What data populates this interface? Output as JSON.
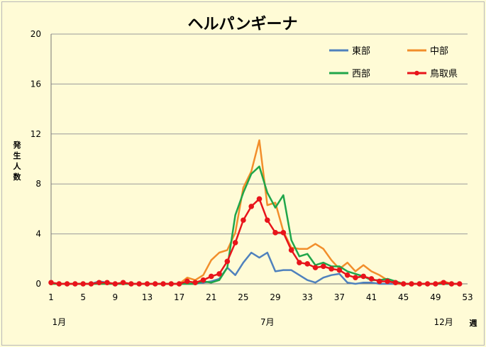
{
  "chart_data": {
    "type": "line",
    "title": "ヘルパンギーナ",
    "ylabel": "発生人数",
    "xlabel_unit": "週",
    "ylim": [
      0,
      20
    ],
    "yticks": [
      0,
      4,
      8,
      12,
      16,
      20
    ],
    "xticks": [
      1,
      5,
      9,
      13,
      17,
      21,
      25,
      29,
      33,
      37,
      41,
      45,
      49,
      53
    ],
    "xlim": [
      1,
      53
    ],
    "month_labels": [
      {
        "label": "1月",
        "week": 2
      },
      {
        "label": "7月",
        "week": 28
      },
      {
        "label": "12月",
        "week": 50
      }
    ],
    "grid": true,
    "legend_position": "top-right",
    "x": [
      1,
      2,
      3,
      4,
      5,
      6,
      7,
      8,
      9,
      10,
      11,
      12,
      13,
      14,
      15,
      16,
      17,
      18,
      19,
      20,
      21,
      22,
      23,
      24,
      25,
      26,
      27,
      28,
      29,
      30,
      31,
      32,
      33,
      34,
      35,
      36,
      37,
      38,
      39,
      40,
      41,
      42,
      43,
      44,
      45,
      46,
      47,
      48,
      49,
      50,
      51,
      52
    ],
    "series": [
      {
        "name": "東部",
        "color": "#4f81bd",
        "marker": false,
        "values": [
          0.1,
          0,
          0,
          0,
          0,
          0,
          0.2,
          0.1,
          0,
          0,
          0,
          0,
          0,
          0,
          0,
          0,
          0,
          0,
          0,
          0.1,
          0.2,
          0.4,
          1.3,
          0.7,
          1.7,
          2.5,
          2.1,
          2.5,
          1,
          1.1,
          1.1,
          0.7,
          0.3,
          0.1,
          0.5,
          0.7,
          0.8,
          0.1,
          0,
          0.1,
          0.1,
          0,
          0,
          0,
          0,
          0,
          0,
          0,
          0,
          0,
          0,
          0
        ]
      },
      {
        "name": "中部",
        "color": "#f28e2b",
        "marker": false,
        "values": [
          0,
          0,
          0,
          0,
          0,
          0,
          0,
          0,
          0,
          0,
          0,
          0,
          0,
          0,
          0,
          0,
          0,
          0.5,
          0.3,
          0.7,
          1.9,
          2.5,
          2.7,
          4.1,
          7.7,
          9.0,
          11.5,
          6.3,
          6.5,
          4.2,
          2.9,
          2.8,
          2.8,
          3.2,
          2.8,
          1.9,
          1.2,
          1.7,
          1.0,
          1.5,
          1.0,
          0.7,
          0.3,
          0,
          0,
          0,
          0,
          0,
          0,
          0.2,
          0,
          0
        ]
      },
      {
        "name": "西部",
        "color": "#1fa64a",
        "marker": false,
        "values": [
          0,
          0,
          0,
          0,
          0,
          0,
          0,
          0,
          0,
          0,
          0,
          0,
          0,
          0,
          0,
          0,
          0,
          0,
          0,
          0.2,
          0.1,
          0.3,
          1.3,
          5.5,
          7.3,
          8.8,
          9.4,
          7.3,
          6.1,
          7.1,
          3.5,
          2.2,
          2.4,
          1.5,
          1.7,
          1.4,
          1.4,
          1.0,
          0.8,
          0.6,
          0.3,
          0.3,
          0.4,
          0.2,
          0,
          0,
          0,
          0,
          0,
          0,
          0,
          0
        ]
      },
      {
        "name": "鳥取県",
        "color": "#e8141b",
        "marker": true,
        "values": [
          0.1,
          0,
          0,
          0,
          0,
          0,
          0.1,
          0.1,
          0,
          0.1,
          0,
          0,
          0,
          0,
          0,
          0,
          0,
          0.2,
          0.1,
          0.3,
          0.6,
          0.8,
          1.8,
          3.3,
          5.1,
          6.2,
          6.8,
          5.1,
          4.1,
          4.1,
          2.7,
          1.7,
          1.6,
          1.3,
          1.4,
          1.2,
          1.1,
          0.7,
          0.5,
          0.6,
          0.4,
          0.2,
          0.2,
          0.1,
          0,
          0,
          0,
          0,
          0,
          0.1,
          0,
          0
        ]
      }
    ]
  }
}
